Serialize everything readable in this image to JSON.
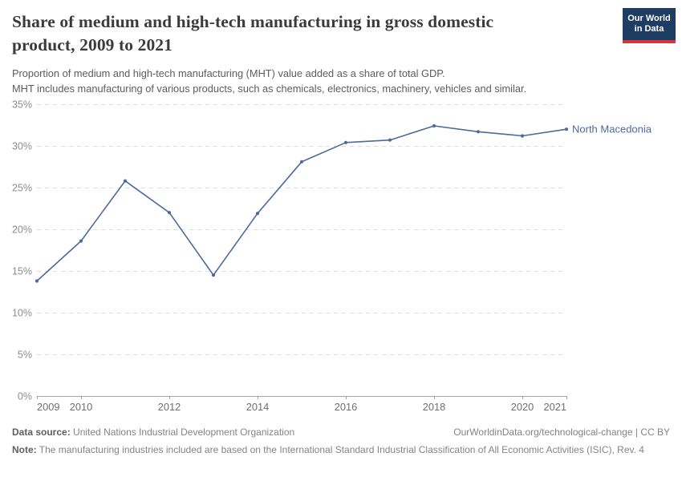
{
  "header": {
    "title_line1": "Share of medium and high-tech manufacturing in gross domestic",
    "title_line2": "product, 2009 to 2021",
    "subtitle_line1": "Proportion of medium and high-tech manufacturing (MHT) value added as a share of total GDP.",
    "subtitle_line2": "MHT includes manufacturing of various products, such as chemicals, electronics, machinery, vehicles and similar.",
    "logo": {
      "line1": "Our World",
      "line2": "in Data",
      "bg_color": "#1d3d63",
      "stripe_color": "#d8353b"
    }
  },
  "chart_data": {
    "type": "line",
    "title": "Share of medium and high-tech manufacturing in gross domestic product, 2009 to 2021",
    "entity": "North Macedonia",
    "unit": "%",
    "x": [
      2009,
      2010,
      2011,
      2012,
      2013,
      2014,
      2015,
      2016,
      2017,
      2018,
      2019,
      2020,
      2021
    ],
    "series": [
      {
        "name": "North Macedonia",
        "color": "#4c6a9c",
        "values": [
          13.8,
          18.6,
          25.8,
          22.0,
          14.5,
          21.9,
          28.1,
          30.4,
          30.7,
          32.4,
          31.7,
          31.2,
          32.0
        ]
      }
    ],
    "ylim": [
      0,
      35
    ],
    "ytick_values": [
      0,
      5,
      10,
      15,
      20,
      25,
      30,
      35
    ],
    "ytick_labels": [
      "0%",
      "5%",
      "10%",
      "15%",
      "20%",
      "25%",
      "30%",
      "35%"
    ],
    "xtick_values": [
      2009,
      2010,
      2012,
      2014,
      2016,
      2018,
      2020,
      2021
    ],
    "grid": "horizontal-dashed",
    "legend_position": "line-end-label"
  },
  "footer": {
    "source_label": "Data source:",
    "source_text": "United Nations Industrial Development Organization",
    "credit": "OurWorldinData.org/technological-change | CC BY",
    "note_label": "Note:",
    "note_text": "The manufacturing industries included are based on the International Standard Industrial Classification of All Economic Activities (ISIC), Rev. 4"
  },
  "colors": {
    "accent_line": "#4c6a9c",
    "logo_navy": "#1d3d63",
    "logo_red": "#d8353b",
    "gridline": "#dddddd",
    "axis": "#a3a3a3"
  }
}
